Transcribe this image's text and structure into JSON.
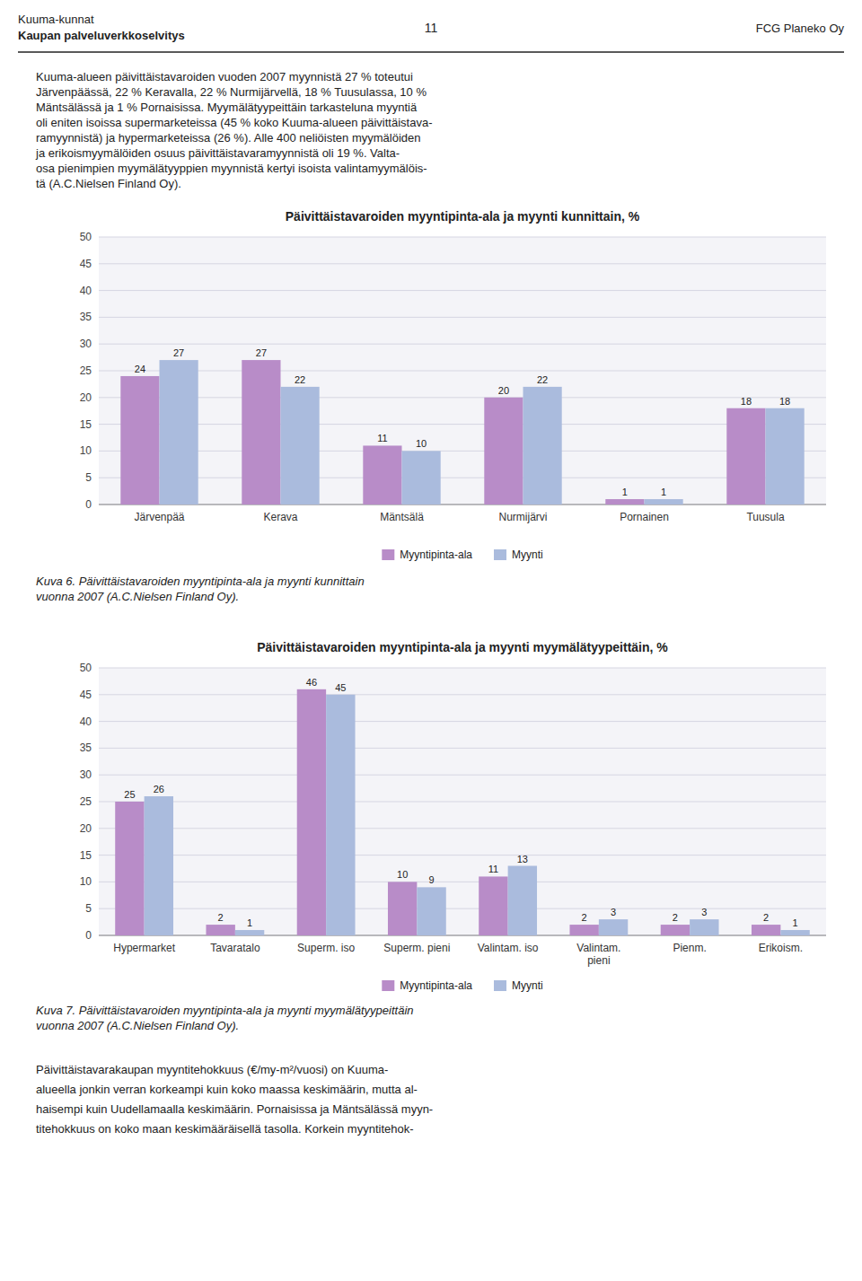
{
  "header": {
    "line1": "Kuuma-kunnat",
    "line2": "Kaupan palveluverkkoselvitys",
    "center": "11",
    "right": "FCG Planeko Oy"
  },
  "intro_lines": [
    "Kuuma-alueen päivittäistavaroiden vuoden 2007 myynnistä 27 % toteutui",
    "Järvenpäässä, 22 % Keravalla, 22 % Nurmijärvellä, 18 % Tuusulassa, 10 %",
    "Mäntsälässä ja 1 % Pornaisissa. Myymälätyypeittäin tarkasteluna myyntiä",
    "oli eniten isoissa supermarketeissa (45 % koko Kuuma-alueen päivittäistava-",
    "ramyynnistä) ja hypermarketeissa (26 %). Alle 400 neliöisten myymälöiden",
    "ja erikoismyymälöiden osuus päivittäistavaramyynnistä oli 19 %. Valta-",
    "osa pienimpien myymälätyyppien myynnistä kertyi isoista valintamyymälöis-",
    "tä (A.C.Nielsen Finland Oy)."
  ],
  "chart_data": [
    {
      "type": "bar",
      "title": "Päivittäistavaroiden myyntipinta-ala ja myynti kunnittain, %",
      "categories": [
        "Järvenpää",
        "Kerava",
        "Mäntsälä",
        "Nurmijärvi",
        "Pornainen",
        "Tuusula"
      ],
      "series": [
        {
          "name": "Myyntipinta-ala",
          "color": "#b88cc8",
          "values": [
            24,
            27,
            11,
            20,
            1,
            18
          ]
        },
        {
          "name": "Myynti",
          "color": "#aabbdd",
          "values": [
            27,
            22,
            10,
            22,
            1,
            18
          ]
        }
      ],
      "ylim": [
        0,
        50
      ],
      "yticks": [
        0,
        5,
        10,
        15,
        20,
        25,
        30,
        35,
        40,
        45,
        50
      ],
      "grid": true,
      "legend": "bottom",
      "data_labels": true
    },
    {
      "type": "bar",
      "title": "Päivittäistavaroiden myyntipinta-ala ja myynti myymälätyypeittäin, %",
      "categories": [
        "Hypermarket",
        "Tavaratalo",
        "Superm. iso",
        "Superm. pieni",
        "Valintam. iso",
        "Valintam.\npieni",
        "Pienm.",
        "Erikoism."
      ],
      "series": [
        {
          "name": "Myyntipinta-ala",
          "color": "#b88cc8",
          "values": [
            25,
            2,
            46,
            10,
            11,
            2,
            2,
            2
          ]
        },
        {
          "name": "Myynti",
          "color": "#aabbdd",
          "values": [
            26,
            1,
            45,
            9,
            13,
            3,
            3,
            1
          ]
        }
      ],
      "ylim": [
        0,
        50
      ],
      "yticks": [
        0,
        5,
        10,
        15,
        20,
        25,
        30,
        35,
        40,
        45,
        50
      ],
      "grid": true,
      "legend": "bottom",
      "data_labels": true
    }
  ],
  "captions": [
    [
      "Kuva 6. Päivittäistavaroiden myyntipinta-ala ja myynti kunnittain",
      "vuonna 2007 (A.C.Nielsen Finland Oy)."
    ],
    [
      "Kuva 7. Päivittäistavaroiden myyntipinta-ala ja myynti myymälätyypeittäin",
      "vuonna 2007 (A.C.Nielsen Finland Oy)."
    ]
  ],
  "bottom_lines": [
    "Päivittäistavarakaupan myyntitehokkuus (€/my-m²/vuosi) on Kuuma-",
    "alueella jonkin verran korkeampi kuin koko maassa keskimäärin, mutta al-",
    "haisempi kuin Uudellamaalla keskimäärin. Pornaisissa ja Mäntsälässä myyn-",
    "titehokkuus on koko maan keskimääräisellä tasolla. Korkein myyntitehok-"
  ]
}
